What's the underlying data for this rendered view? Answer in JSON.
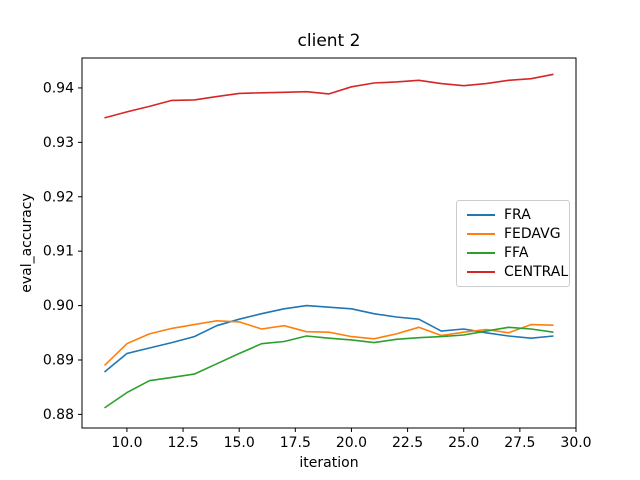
{
  "figure": {
    "title": "client 2",
    "xlabel": "iteration",
    "ylabel": "eval_accuracy"
  },
  "chart_data": {
    "type": "line",
    "title": "client 2",
    "xlabel": "iteration",
    "ylabel": "eval_accuracy",
    "grid": false,
    "legend_position": "center-right",
    "xlim": [
      8,
      30
    ],
    "ylim": [
      0.8775,
      0.9455
    ],
    "xticks": {
      "values": [
        10,
        12.5,
        15,
        17.5,
        20,
        22.5,
        25,
        27.5,
        30
      ],
      "labels": [
        "10.0",
        "12.5",
        "15.0",
        "17.5",
        "20.0",
        "22.5",
        "25.0",
        "27.5",
        "30.0"
      ]
    },
    "yticks": {
      "values": [
        0.88,
        0.89,
        0.9,
        0.91,
        0.92,
        0.93,
        0.94
      ],
      "labels": [
        "0.88",
        "0.89",
        "0.90",
        "0.91",
        "0.92",
        "0.93",
        "0.94"
      ]
    },
    "x": [
      9,
      10,
      11,
      12,
      13,
      14,
      15,
      16,
      17,
      18,
      19,
      20,
      21,
      22,
      23,
      24,
      25,
      26,
      27,
      28,
      29
    ],
    "series": [
      {
        "name": "FRA",
        "color": "#1f77b4",
        "values": [
          0.8878,
          0.8912,
          0.8922,
          0.8932,
          0.8943,
          0.8963,
          0.8975,
          0.8985,
          0.8994,
          0.9,
          0.8997,
          0.8994,
          0.8985,
          0.8979,
          0.8975,
          0.8953,
          0.8957,
          0.895,
          0.8944,
          0.894,
          0.8944
        ]
      },
      {
        "name": "FEDAVG",
        "color": "#ff7f0e",
        "values": [
          0.889,
          0.893,
          0.8948,
          0.8958,
          0.8965,
          0.8972,
          0.897,
          0.8957,
          0.8963,
          0.8952,
          0.8951,
          0.8943,
          0.8939,
          0.8948,
          0.896,
          0.8945,
          0.8951,
          0.8956,
          0.895,
          0.8965,
          0.8964
        ]
      },
      {
        "name": "FFA",
        "color": "#2ca02c",
        "values": [
          0.8812,
          0.884,
          0.8862,
          0.8868,
          0.8874,
          0.8893,
          0.8912,
          0.893,
          0.8934,
          0.8944,
          0.894,
          0.8937,
          0.8932,
          0.8938,
          0.8941,
          0.8943,
          0.8946,
          0.8953,
          0.896,
          0.8957,
          0.8951
        ]
      },
      {
        "name": "CENTRAL",
        "color": "#d62728",
        "values": [
          0.9345,
          0.9356,
          0.9366,
          0.9377,
          0.9378,
          0.9384,
          0.939,
          0.9391,
          0.9392,
          0.9393,
          0.9389,
          0.9402,
          0.9409,
          0.9411,
          0.9414,
          0.9408,
          0.9404,
          0.9408,
          0.9414,
          0.9417,
          0.9425
        ]
      }
    ]
  }
}
